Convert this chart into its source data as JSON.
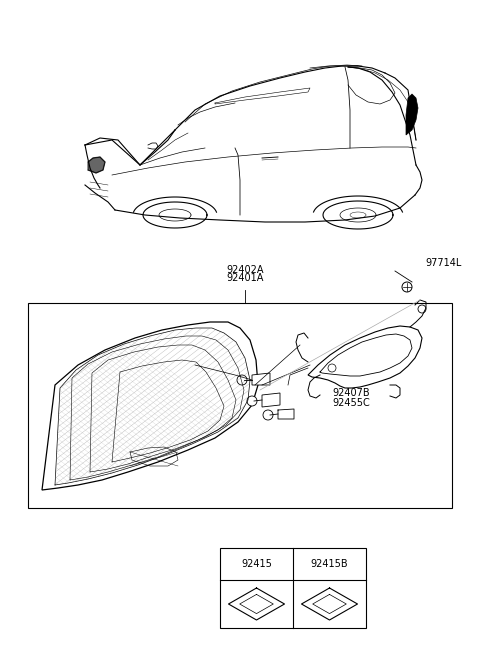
{
  "background_color": "#ffffff",
  "fig_width": 4.8,
  "fig_height": 6.57,
  "dpi": 100,
  "line_color": "#000000",
  "text_color": "#000000",
  "font_size": 7.0,
  "label_92402A": "92402A",
  "label_92401A": "92401A",
  "label_97714L": "97714L",
  "label_92407B": "92407B",
  "label_92455C": "92455C",
  "label_92415": "92415",
  "label_92415B": "92415B"
}
